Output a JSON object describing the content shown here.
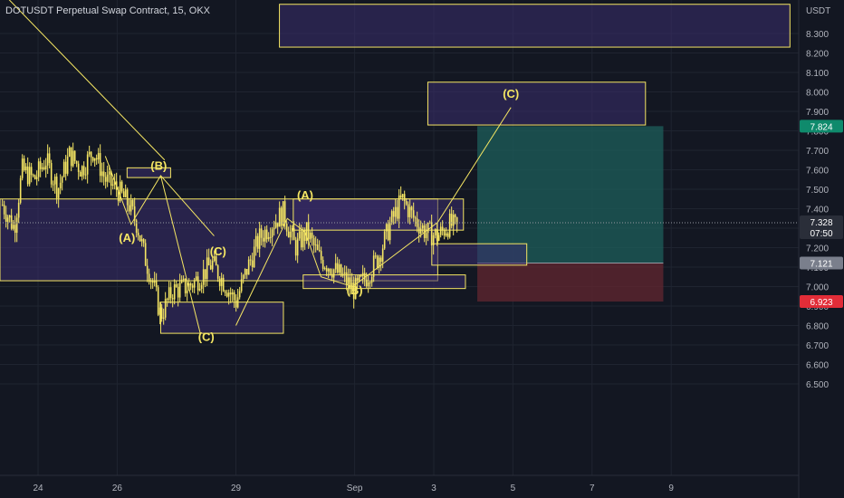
{
  "header": {
    "title": "DOTUSDT Perpetual Swap Contract, 15, OKX"
  },
  "colors": {
    "background": "#131722",
    "grid": "#1f2430",
    "candle": "#f5e663",
    "annotation": "#f5e663",
    "zone_fill": "#3a2e6e",
    "target_fill": "#1d5a57",
    "stop_fill": "#5e2530",
    "price_tag": "#2a2e39",
    "target_tag": "#0f8a6c",
    "stop_tag": "#e22d38",
    "mid_tag": "#7a7f8c"
  },
  "chart_data": {
    "type": "candlestick",
    "title": "DOTUSDT Perpetual Swap Contract, 15, OKX",
    "y_unit": "USDT",
    "ylim": [
      6.4,
      8.45
    ],
    "y_ticks": [
      "8.300",
      "8.200",
      "8.100",
      "8.000",
      "7.900",
      "7.800",
      "7.700",
      "7.600",
      "7.500",
      "7.400",
      "7.300",
      "7.200",
      "7.100",
      "7.000",
      "6.900",
      "6.800",
      "6.700",
      "6.600",
      "6.500"
    ],
    "x_ticks": [
      "24",
      "26",
      "29",
      "Sep",
      "3",
      "5",
      "7",
      "9"
    ],
    "x_ticks_days": [
      0,
      2,
      5,
      8,
      10,
      12,
      14,
      16
    ],
    "price_path": [
      [
        -0.9,
        7.42
      ],
      [
        -0.6,
        7.3
      ],
      [
        -0.4,
        7.6
      ],
      [
        -0.1,
        7.55
      ],
      [
        0.2,
        7.65
      ],
      [
        0.5,
        7.5
      ],
      [
        0.8,
        7.68
      ],
      [
        1.1,
        7.6
      ],
      [
        1.4,
        7.7
      ],
      [
        1.7,
        7.55
      ],
      [
        2.0,
        7.5
      ],
      [
        2.3,
        7.42
      ],
      [
        2.5,
        7.32
      ],
      [
        2.7,
        7.15
      ],
      [
        2.9,
        7.02
      ],
      [
        3.1,
        6.85
      ],
      [
        3.4,
        6.98
      ],
      [
        3.8,
        7.0
      ],
      [
        4.1,
        7.05
      ],
      [
        4.4,
        7.12
      ],
      [
        4.7,
        7.02
      ],
      [
        5.0,
        6.92
      ],
      [
        5.3,
        7.1
      ],
      [
        5.6,
        7.25
      ],
      [
        5.9,
        7.32
      ],
      [
        6.2,
        7.38
      ],
      [
        6.5,
        7.2
      ],
      [
        6.8,
        7.28
      ],
      [
        7.1,
        7.15
      ],
      [
        7.4,
        7.1
      ],
      [
        7.7,
        7.05
      ],
      [
        8.0,
        6.98
      ],
      [
        8.3,
        7.05
      ],
      [
        8.6,
        7.15
      ],
      [
        8.9,
        7.32
      ],
      [
        9.2,
        7.45
      ],
      [
        9.5,
        7.35
      ],
      [
        9.8,
        7.28
      ],
      [
        10.1,
        7.26
      ],
      [
        10.4,
        7.32
      ],
      [
        10.6,
        7.3
      ]
    ],
    "annotations": {
      "wave_labels": [
        {
          "text": "(A)",
          "x": 2.25,
          "y": 7.23
        },
        {
          "text": "(B)",
          "x": 3.05,
          "y": 7.6
        },
        {
          "text": "(C)",
          "x": 4.55,
          "y": 7.16
        },
        {
          "text": "(C)",
          "x": 4.25,
          "y": 6.72
        },
        {
          "text": "(A)",
          "x": 6.75,
          "y": 7.45
        },
        {
          "text": "(B)",
          "x": 8.0,
          "y": 6.96
        },
        {
          "text": "(C)",
          "x": 11.95,
          "y": 7.97
        }
      ],
      "lines": [
        [
          [
            -1.0,
            8.53
          ],
          [
            3.2,
            7.65
          ]
        ],
        [
          [
            1.7,
            7.67
          ],
          [
            2.35,
            7.32
          ],
          [
            3.1,
            7.57
          ],
          [
            4.45,
            7.26
          ]
        ],
        [
          [
            3.1,
            7.57
          ],
          [
            4.1,
            6.76
          ]
        ],
        [
          [
            5.0,
            6.8
          ],
          [
            6.3,
            7.35
          ],
          [
            6.75,
            7.28
          ],
          [
            7.15,
            7.05
          ],
          [
            7.95,
            7.0
          ],
          [
            10.1,
            7.33
          ],
          [
            11.95,
            7.92
          ]
        ]
      ],
      "zones": [
        {
          "x0": 6.1,
          "x1": 19.0,
          "y0": 8.23,
          "y1": 8.45
        },
        {
          "x0": 9.85,
          "x1": 15.35,
          "y0": 7.83,
          "y1": 8.05
        },
        {
          "x0": 2.25,
          "x1": 3.35,
          "y0": 7.56,
          "y1": 7.61
        },
        {
          "x0": -1.0,
          "x1": 10.1,
          "y0": 7.03,
          "y1": 7.45
        },
        {
          "x0": 6.45,
          "x1": 10.75,
          "y0": 7.29,
          "y1": 7.45
        },
        {
          "x0": 6.7,
          "x1": 10.8,
          "y0": 6.99,
          "y1": 7.06
        },
        {
          "x0": 3.1,
          "x1": 6.2,
          "y0": 6.76,
          "y1": 6.92
        },
        {
          "x0": 9.95,
          "x1": 12.35,
          "y0": 7.11,
          "y1": 7.22
        }
      ],
      "target": {
        "x0": 11.1,
        "x1": 15.8,
        "entry": 7.121,
        "take_profit": 7.824
      },
      "stop": {
        "x0": 11.1,
        "x1": 15.8,
        "entry": 7.121,
        "stop_loss": 6.923
      }
    },
    "price_labels": {
      "target": "7.824",
      "current": "7.328",
      "countdown": "07:50",
      "entry": "7.121",
      "stop": "6.923"
    }
  }
}
